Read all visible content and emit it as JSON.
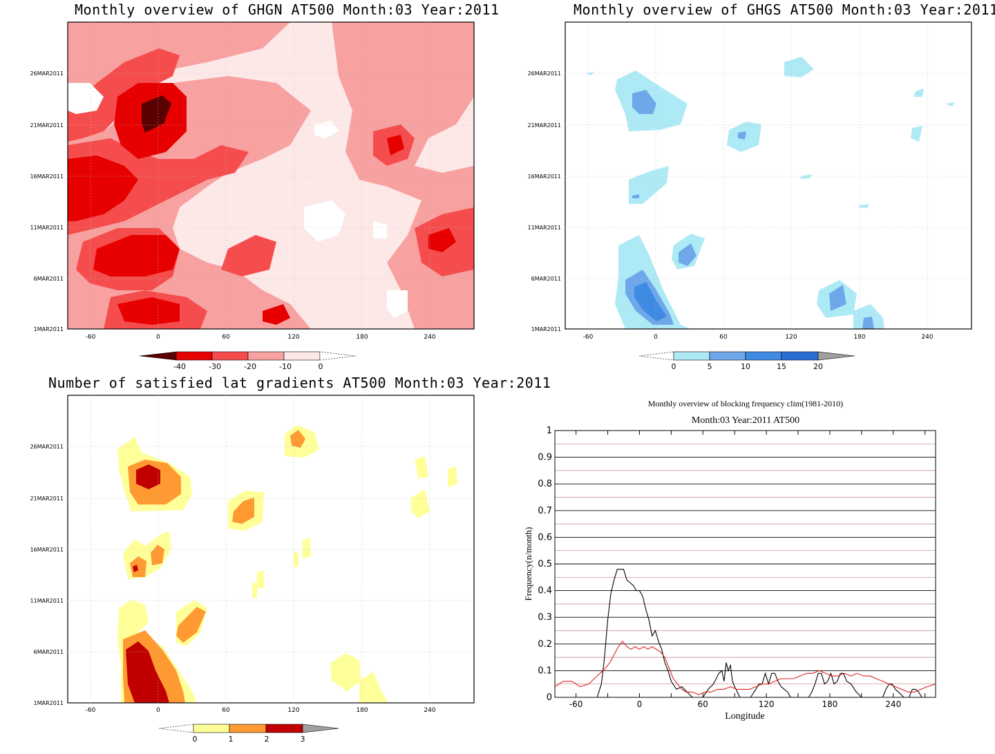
{
  "panels": {
    "ghgn": {
      "title": "Monthly overview of GHGN AT500 Month:03 Year:2011"
    },
    "ghgs": {
      "title": "Monthly overview of GHGS AT500 Month:03 Year:2011"
    },
    "grad": {
      "title": "Number of satisfied lat gradients AT500 Month:03 Year:2011"
    },
    "freq": {
      "title": "Monthly overview of blocking frequency clim(1981-2010)",
      "subtitle": "Month:03 Year:2011  AT500"
    }
  },
  "colors": {
    "ghgn_levels": [
      "#5a0000",
      "#e60000",
      "#f54d4d",
      "#f7a1a1",
      "#fde8e8",
      "#ffffff"
    ],
    "ghgs_levels": [
      "#ffffff",
      "#aeeaf5",
      "#6fa8ea",
      "#3f8ae3",
      "#2a6fd6",
      "#a0a0a0"
    ],
    "grad_levels": [
      "#ffffff",
      "#ffff99",
      "#ff9a33",
      "#c00000",
      "#a0a0a0"
    ],
    "year_line": "#000000",
    "clim_line": "#e02020"
  },
  "chart_data": [
    {
      "type": "heatmap",
      "title": "Monthly overview of GHGN AT500 Month:03 Year:2011",
      "x_ticks": [
        "-60",
        "0",
        "60",
        "120",
        "180",
        "240"
      ],
      "y_ticks": [
        "1MAR2011",
        "6MAR2011",
        "11MAR2011",
        "16MAR2011",
        "21MAR2011",
        "26MAR2011"
      ],
      "colorbar_ticks": [
        "-40",
        "-30",
        "-20",
        "-10",
        "0"
      ],
      "xlim": [
        -80,
        280
      ],
      "ylim": [
        "1MAR2011",
        "31MAR2011"
      ]
    },
    {
      "type": "heatmap",
      "title": "Monthly overview of GHGS AT500 Month:03 Year:2011",
      "x_ticks": [
        "-60",
        "0",
        "60",
        "120",
        "180",
        "240"
      ],
      "y_ticks": [
        "1MAR2011",
        "6MAR2011",
        "11MAR2011",
        "16MAR2011",
        "21MAR2011",
        "26MAR2011"
      ],
      "colorbar_ticks": [
        "0",
        "5",
        "10",
        "15",
        "20"
      ],
      "xlim": [
        -80,
        280
      ],
      "ylim": [
        "1MAR2011",
        "31MAR2011"
      ]
    },
    {
      "type": "heatmap",
      "title": "Number of satisfied lat gradients AT500 Month:03 Year:2011",
      "x_ticks": [
        "-60",
        "0",
        "60",
        "120",
        "180",
        "240"
      ],
      "y_ticks": [
        "1MAR2011",
        "6MAR2011",
        "11MAR2011",
        "16MAR2011",
        "21MAR2011",
        "26MAR2011"
      ],
      "colorbar_ticks": [
        "0",
        "1",
        "2",
        "3"
      ],
      "xlim": [
        -80,
        280
      ],
      "ylim": [
        "1MAR2011",
        "31MAR2011"
      ]
    },
    {
      "type": "line",
      "title": "Monthly overview of blocking frequency clim(1981-2010)",
      "subtitle": "Month:03 Year:2011  AT500",
      "xlabel": "Longitude",
      "ylabel": "Frequency(n/month)",
      "xlim": [
        -80,
        280
      ],
      "ylim": [
        0,
        1
      ],
      "x_ticks": [
        "-60",
        "0",
        "60",
        "120",
        "180",
        "240"
      ],
      "y_ticks": [
        "0",
        "0.1",
        "0.2",
        "0.3",
        "0.4",
        "0.5",
        "0.6",
        "0.7",
        "0.8",
        "0.9",
        "1"
      ],
      "series": [
        {
          "color": "#000000",
          "x": [
            -80,
            -70,
            -60,
            -50,
            -40,
            -36,
            -33,
            -30,
            -27,
            -24,
            -21,
            -18,
            -15,
            -12,
            -9,
            -6,
            -3,
            0,
            3,
            6,
            9,
            12,
            15,
            18,
            21,
            24,
            27,
            30,
            35,
            40,
            45,
            50,
            55,
            60,
            65,
            70,
            75,
            78,
            80,
            82,
            84,
            86,
            88,
            90,
            95,
            100,
            105,
            110,
            113,
            116,
            119,
            122,
            125,
            128,
            131,
            134,
            137,
            140,
            143,
            146,
            150,
            155,
            160,
            163,
            166,
            169,
            172,
            175,
            178,
            181,
            184,
            187,
            190,
            193,
            196,
            200,
            205,
            210,
            215,
            220,
            225,
            230,
            233,
            236,
            239,
            242,
            245,
            250,
            255,
            258,
            261,
            264,
            267,
            270,
            275,
            280
          ],
          "y": [
            0,
            0,
            0,
            0,
            0,
            0.05,
            0.15,
            0.29,
            0.39,
            0.44,
            0.48,
            0.48,
            0.48,
            0.44,
            0.43,
            0.42,
            0.4,
            0.4,
            0.38,
            0.33,
            0.29,
            0.23,
            0.25,
            0.21,
            0.18,
            0.13,
            0.1,
            0.06,
            0.03,
            0.04,
            0.02,
            0,
            0,
            0,
            0.03,
            0.05,
            0.09,
            0.1,
            0.06,
            0.13,
            0.1,
            0.12,
            0.06,
            0.04,
            0,
            0,
            0,
            0.03,
            0.05,
            0.05,
            0.09,
            0.05,
            0.09,
            0.09,
            0.06,
            0.04,
            0.03,
            0.02,
            0,
            0,
            0,
            0,
            0,
            0.02,
            0.05,
            0.09,
            0.09,
            0.05,
            0.06,
            0.09,
            0.05,
            0.06,
            0.09,
            0.09,
            0.06,
            0.05,
            0.02,
            0,
            0,
            0,
            0,
            0,
            0.03,
            0.05,
            0.05,
            0.03,
            0.02,
            0,
            0,
            0.03,
            0.03,
            0.02,
            0,
            0,
            0,
            0
          ]
        },
        {
          "color": "#e02020",
          "x": [
            -80,
            -72,
            -64,
            -56,
            -48,
            -40,
            -32,
            -28,
            -24,
            -20,
            -16,
            -12,
            -8,
            -4,
            0,
            4,
            8,
            12,
            16,
            20,
            24,
            28,
            32,
            36,
            40,
            44,
            50,
            56,
            62,
            68,
            74,
            80,
            86,
            92,
            98,
            104,
            110,
            116,
            122,
            128,
            134,
            140,
            146,
            152,
            158,
            164,
            170,
            176,
            182,
            188,
            194,
            200,
            206,
            212,
            218,
            224,
            230,
            236,
            242,
            248,
            254,
            260,
            266,
            272,
            280
          ],
          "y": [
            0.04,
            0.06,
            0.06,
            0.04,
            0.05,
            0.08,
            0.11,
            0.13,
            0.16,
            0.19,
            0.21,
            0.19,
            0.18,
            0.19,
            0.18,
            0.19,
            0.18,
            0.19,
            0.18,
            0.17,
            0.15,
            0.11,
            0.07,
            0.05,
            0.03,
            0.02,
            0.02,
            0.01,
            0.02,
            0.02,
            0.03,
            0.03,
            0.04,
            0.03,
            0.03,
            0.03,
            0.04,
            0.05,
            0.05,
            0.06,
            0.07,
            0.07,
            0.07,
            0.08,
            0.09,
            0.09,
            0.1,
            0.09,
            0.08,
            0.08,
            0.09,
            0.08,
            0.09,
            0.08,
            0.08,
            0.07,
            0.06,
            0.05,
            0.04,
            0.03,
            0.02,
            0.02,
            0.03,
            0.04,
            0.05
          ]
        }
      ]
    }
  ]
}
